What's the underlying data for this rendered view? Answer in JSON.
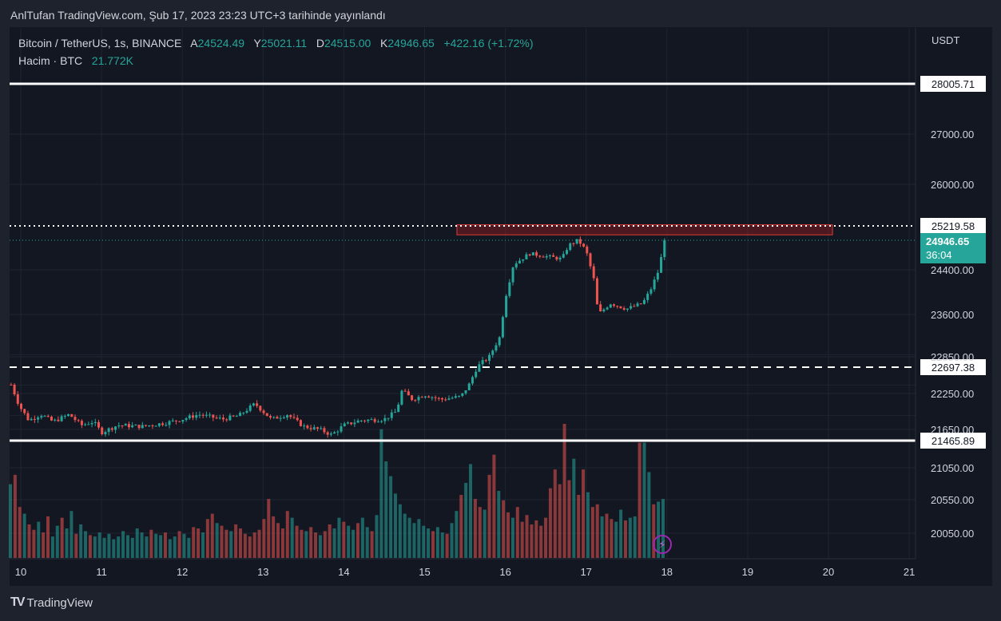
{
  "header": {
    "published": "AnlTufan TradingView.com, Şub 17, 2023 23:23 UTC+3 tarihinde yayınlandı"
  },
  "legend": {
    "symbol": "Bitcoin / TetherUS, 1s, BINANCE",
    "open_label": "A",
    "open": "24524.49",
    "high_label": "Y",
    "high": "25021.11",
    "low_label": "D",
    "low": "24515.00",
    "close_label": "K",
    "close": "24946.65",
    "change": "+422.16 (+1.72%)",
    "volume_label": "Hacim · BTC",
    "volume": "21.772K"
  },
  "price_axis": {
    "currency": "USDT"
  },
  "brand": {
    "name": "TradingView"
  },
  "colors": {
    "up": "#26a69a",
    "down": "#ef5350",
    "background": "#131722",
    "zone": "#b71c1c"
  },
  "chart_data": {
    "type": "candlestick",
    "symbol": "BTCUSDT",
    "interval": "1h",
    "y_ticks": [
      "27000.00",
      "26000.00",
      "24400.00",
      "23600.00",
      "22850.00",
      "22250.00",
      "21650.00",
      "21050.00",
      "20550.00",
      "20050.00"
    ],
    "x_ticks": [
      "10",
      "11",
      "12",
      "13",
      "14",
      "15",
      "16",
      "17",
      "18",
      "19",
      "20",
      "21"
    ],
    "horizontal_lines": [
      {
        "price": "28005.71",
        "style": "solid",
        "color": "#ffffff"
      },
      {
        "price": "25219.58",
        "style": "dotted",
        "color": "#ffffff"
      },
      {
        "price": "22697.38",
        "style": "dashed",
        "color": "#ffffff"
      },
      {
        "price": "21465.89",
        "style": "solid",
        "color": "#ffffff"
      }
    ],
    "last_price": {
      "price": "24946.65",
      "countdown": "36:04"
    },
    "resistance_zone": {
      "from_day": 15.4,
      "to_day": 20.05,
      "price_low": 25050,
      "price_high": 25240,
      "color": "#b71c1c"
    },
    "price_path": [
      [
        9.88,
        22400
      ],
      [
        9.98,
        22050
      ],
      [
        10.1,
        21800
      ],
      [
        10.25,
        21900
      ],
      [
        10.4,
        21780
      ],
      [
        10.6,
        21900
      ],
      [
        10.75,
        21720
      ],
      [
        10.9,
        21780
      ],
      [
        11.0,
        21600
      ],
      [
        11.2,
        21720
      ],
      [
        11.5,
        21700
      ],
      [
        11.8,
        21760
      ],
      [
        12.0,
        21820
      ],
      [
        12.2,
        21900
      ],
      [
        12.5,
        21820
      ],
      [
        12.7,
        21880
      ],
      [
        12.9,
        22080
      ],
      [
        13.0,
        21950
      ],
      [
        13.1,
        21820
      ],
      [
        13.3,
        21900
      ],
      [
        13.5,
        21700
      ],
      [
        13.7,
        21650
      ],
      [
        13.85,
        21560
      ],
      [
        14.0,
        21720
      ],
      [
        14.2,
        21800
      ],
      [
        14.5,
        21820
      ],
      [
        14.65,
        21950
      ],
      [
        14.72,
        22300
      ],
      [
        14.85,
        22150
      ],
      [
        15.0,
        22230
      ],
      [
        15.2,
        22150
      ],
      [
        15.45,
        22200
      ],
      [
        15.55,
        22400
      ],
      [
        15.65,
        22700
      ],
      [
        15.8,
        22850
      ],
      [
        15.93,
        23200
      ],
      [
        16.0,
        23900
      ],
      [
        16.1,
        24500
      ],
      [
        16.3,
        24700
      ],
      [
        16.5,
        24650
      ],
      [
        16.7,
        24600
      ],
      [
        16.78,
        24850
      ],
      [
        16.9,
        24950
      ],
      [
        17.0,
        24750
      ],
      [
        17.1,
        24200
      ],
      [
        17.15,
        23600
      ],
      [
        17.3,
        23800
      ],
      [
        17.5,
        23700
      ],
      [
        17.7,
        23800
      ],
      [
        17.8,
        24050
      ],
      [
        17.9,
        24400
      ],
      [
        17.97,
        24946.65
      ]
    ],
    "volume_levels": [
      0.55,
      0.62,
      0.38,
      0.33,
      0.25,
      0.21,
      0.27,
      0.19,
      0.31,
      0.16,
      0.24,
      0.3,
      0.22,
      0.35,
      0.18,
      0.25,
      0.2,
      0.17,
      0.16,
      0.19,
      0.15,
      0.18,
      0.14,
      0.16,
      0.2,
      0.17,
      0.15,
      0.22,
      0.19,
      0.16,
      0.21,
      0.18,
      0.17,
      0.19,
      0.14,
      0.16,
      0.2,
      0.18,
      0.15,
      0.23,
      0.22,
      0.19,
      0.29,
      0.33,
      0.26,
      0.24,
      0.21,
      0.2,
      0.25,
      0.22,
      0.18,
      0.16,
      0.19,
      0.21,
      0.29,
      0.44,
      0.31,
      0.26,
      0.22,
      0.35,
      0.3,
      0.24,
      0.21,
      0.2,
      0.23,
      0.19,
      0.17,
      0.2,
      0.25,
      0.22,
      0.3,
      0.27,
      0.24,
      0.21,
      0.26,
      0.3,
      0.23,
      0.2,
      0.32,
      0.96,
      0.72,
      0.61,
      0.48,
      0.4,
      0.33,
      0.3,
      0.26,
      0.29,
      0.24,
      0.22,
      0.2,
      0.23,
      0.19,
      0.18,
      0.26,
      0.35,
      0.47,
      0.56,
      0.7,
      0.44,
      0.38,
      0.36,
      0.62,
      0.77,
      0.5,
      0.43,
      0.34,
      0.3,
      0.38,
      0.27,
      0.32,
      0.25,
      0.28,
      0.24,
      0.3,
      0.52,
      0.66,
      0.55,
      1.0,
      0.58,
      0.74,
      0.47,
      0.66,
      0.49,
      0.38,
      0.4,
      0.31,
      0.33,
      0.29,
      0.27,
      0.36,
      0.28,
      0.3,
      0.31,
      0.86,
      0.86,
      0.64,
      0.4,
      0.42,
      0.44
    ]
  }
}
